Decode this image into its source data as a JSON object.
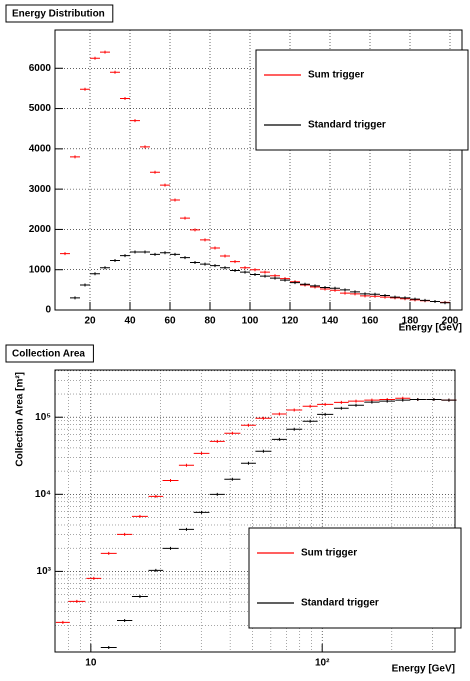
{
  "chart_data": [
    {
      "type": "scatter",
      "title": "Energy Distribution",
      "x_label": "Energy [GeV]",
      "x": [
        7.5,
        12.5,
        17.5,
        22.5,
        27.5,
        32.5,
        37.5,
        42.5,
        47.5,
        52.5,
        57.5,
        62.5,
        67.5,
        72.5,
        77.5,
        82.5,
        87.5,
        92.5,
        97.5,
        102.5,
        107.5,
        112.5,
        117.5,
        122.5,
        127.5,
        132.5,
        137.5,
        142.5,
        147.5,
        152.5,
        157.5,
        162.5,
        167.5,
        172.5,
        177.5,
        182.5,
        187.5,
        192.5,
        197.5
      ],
      "series": [
        {
          "name": "Sum trigger",
          "color": "#ff0000",
          "values": [
            1400,
            3800,
            5480,
            6250,
            6400,
            5900,
            5250,
            4700,
            4050,
            3420,
            3100,
            2730,
            2280,
            1990,
            1740,
            1540,
            1340,
            1200,
            1050,
            1000,
            940,
            850,
            780,
            700,
            620,
            570,
            520,
            490,
            420,
            400,
            350,
            340,
            320,
            300,
            280,
            250,
            230,
            210,
            190
          ]
        },
        {
          "name": "Standard trigger",
          "color": "#000000",
          "values": [
            null,
            300,
            620,
            900,
            1050,
            1230,
            1350,
            1440,
            1440,
            1380,
            1420,
            1380,
            1300,
            1180,
            1140,
            1100,
            1050,
            980,
            940,
            880,
            840,
            790,
            740,
            680,
            640,
            600,
            560,
            540,
            500,
            450,
            400,
            390,
            360,
            320,
            300,
            270,
            240,
            210,
            180
          ]
        }
      ],
      "xlim": [
        2.5,
        206
      ],
      "xticks": [
        20,
        40,
        60,
        80,
        100,
        120,
        140,
        160,
        180,
        200
      ],
      "ylim": [
        0,
        6950
      ],
      "yticks": [
        0,
        1000,
        2000,
        3000,
        4000,
        5000,
        6000
      ],
      "grid": true,
      "legend": "top-right"
    },
    {
      "type": "scatter",
      "title": "Collection Area",
      "x_label": "Energy [GeV]",
      "y_label": "Collection Area [m²]",
      "x": [
        7.57,
        8.7,
        10.3,
        11.95,
        14.0,
        16.3,
        19.1,
        22.1,
        25.9,
        30.1,
        35.2,
        40.9,
        48,
        55.7,
        65.3,
        75.7,
        88.7,
        103,
        121,
        140,
        164,
        191,
        223,
        259,
        304,
        353
      ],
      "series": [
        {
          "name": "Sum trigger",
          "color": "#ff0000",
          "values": [
            218,
            408,
            811,
            1713,
            3020,
            5180,
            9420,
            15100,
            23800,
            34000,
            48700,
            62000,
            78700,
            97000,
            110000,
            124000,
            139000,
            147000,
            156000,
            162000,
            167000,
            170000,
            176000,
            170000,
            170000,
            167000
          ]
        },
        {
          "name": "Standard trigger",
          "color": "#000000",
          "values": [
            null,
            null,
            null,
            103,
            231,
            473,
            1030,
            1990,
            3510,
            5830,
            10000,
            15700,
            25300,
            36200,
            51700,
            69800,
            88700,
            109000,
            131000,
            143000,
            157000,
            162000,
            167000,
            170000,
            170000,
            167000
          ]
        }
      ],
      "xlim": [
        7,
        375
      ],
      "xticks": [
        {
          "value": 10,
          "label": "10"
        },
        {
          "value": 100,
          "label": "10²"
        }
      ],
      "ylim": [
        90,
        410000
      ],
      "yticks": [
        {
          "value": 1000,
          "label": "10³"
        },
        {
          "value": 10000,
          "label": "10⁴"
        },
        {
          "value": 100000,
          "label": "10⁵"
        }
      ],
      "log_x": true,
      "log_y": true,
      "grid": true,
      "legend": "bottom-right"
    }
  ]
}
